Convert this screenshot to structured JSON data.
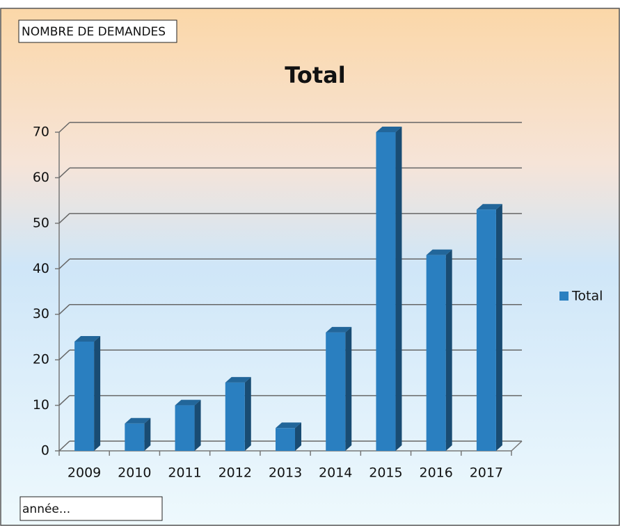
{
  "chart_data": {
    "type": "bar",
    "title": "Total",
    "y_label": "NOMBRE DE DEMANDES",
    "x_label": "année...",
    "categories": [
      "2009",
      "2010",
      "2011",
      "2012",
      "2013",
      "2014",
      "2015",
      "2016",
      "2017"
    ],
    "series": [
      {
        "name": "Total",
        "color": "#2a7fc0",
        "values": [
          24,
          6,
          10,
          15,
          5,
          26,
          70,
          43,
          53
        ]
      }
    ],
    "ylim": [
      0,
      70
    ],
    "yticks": [
      0,
      10,
      20,
      30,
      40,
      50,
      60,
      70
    ],
    "grid": true,
    "legend": "right"
  }
}
